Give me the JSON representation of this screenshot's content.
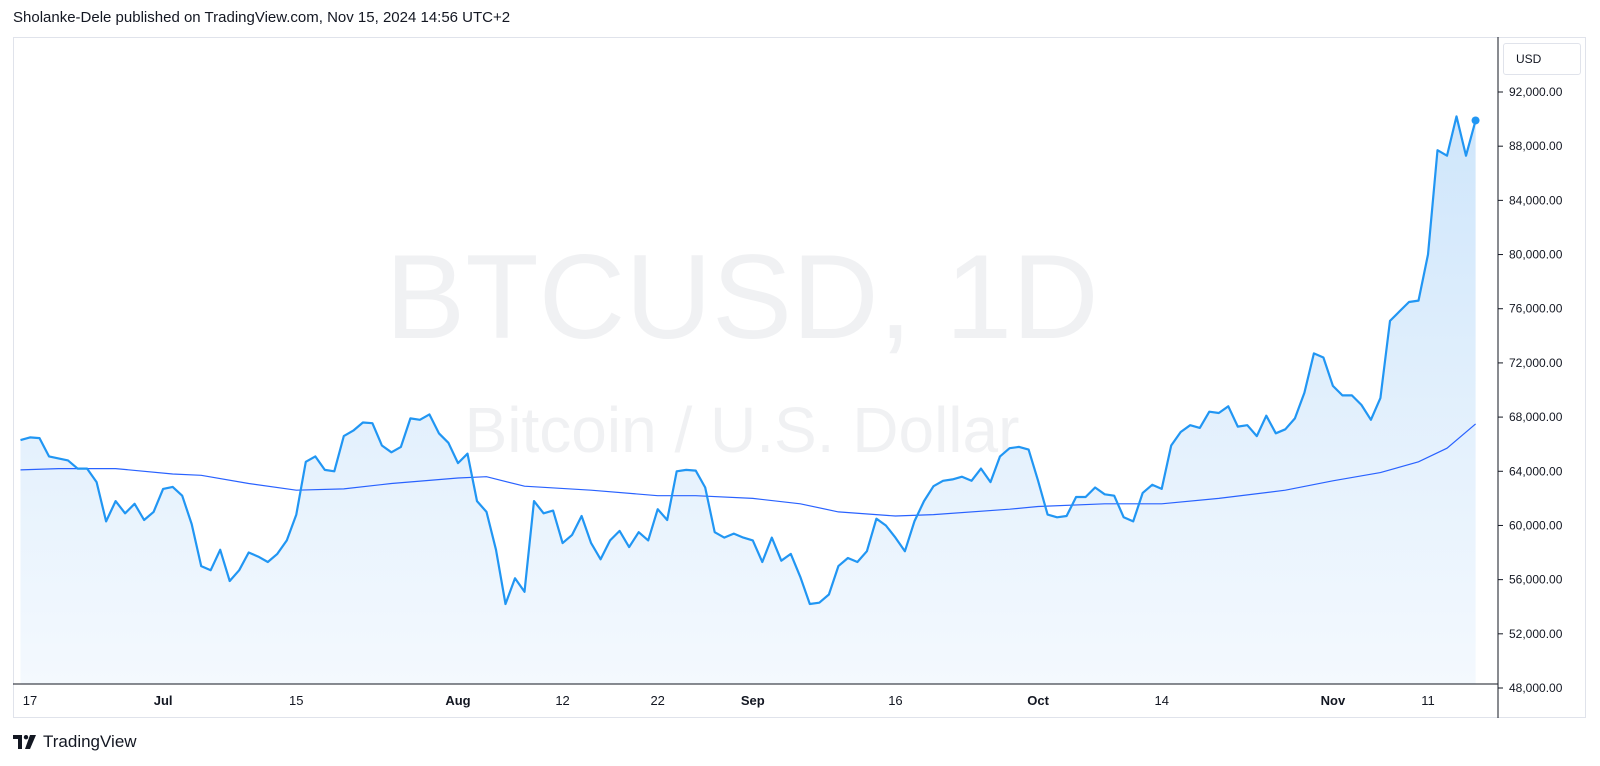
{
  "header": {
    "published_line": "Sholanke-Dele published on TradingView.com, Nov 15, 2024 14:56 UTC+2"
  },
  "currency_label": "USD",
  "watermark": {
    "symbol": "BTCUSD, 1D",
    "description": "Bitcoin / U.S. Dollar"
  },
  "footer": {
    "brand": "TradingView",
    "logo_icon": "tradingview-logo-icon"
  },
  "colors": {
    "price_line": "#2196f3",
    "ma_line": "#2962ff",
    "area_top": "#cfe6fb",
    "area_bottom": "#f4f9fe",
    "grid_border": "#e0e3eb",
    "watermark": "#f0f1f3"
  },
  "chart_data": {
    "type": "area",
    "title": "BTCUSD, 1D",
    "subtitle": "Bitcoin / U.S. Dollar",
    "ylim": [
      45000,
      95000
    ],
    "y_ticks": [
      48000,
      52000,
      56000,
      60000,
      64000,
      68000,
      72000,
      76000,
      80000,
      84000,
      88000,
      92000
    ],
    "y_tick_labels": [
      "48,000.00",
      "52,000.00",
      "56,000.00",
      "60,000.00",
      "64,000.00",
      "68,000.00",
      "72,000.00",
      "76,000.00",
      "80,000.00",
      "84,000.00",
      "88,000.00",
      "92,000.00"
    ],
    "x_range": [
      "2024-06-16",
      "2024-11-17"
    ],
    "x_ticks": [
      {
        "date": "2024-06-17",
        "label": "17",
        "bold": false
      },
      {
        "date": "2024-07-01",
        "label": "Jul",
        "bold": true
      },
      {
        "date": "2024-07-15",
        "label": "15",
        "bold": false
      },
      {
        "date": "2024-08-01",
        "label": "Aug",
        "bold": true
      },
      {
        "date": "2024-08-12",
        "label": "12",
        "bold": false
      },
      {
        "date": "2024-08-22",
        "label": "22",
        "bold": false
      },
      {
        "date": "2024-09-01",
        "label": "Sep",
        "bold": true
      },
      {
        "date": "2024-09-16",
        "label": "16",
        "bold": false
      },
      {
        "date": "2024-10-01",
        "label": "Oct",
        "bold": true
      },
      {
        "date": "2024-10-14",
        "label": "14",
        "bold": false
      },
      {
        "date": "2024-11-01",
        "label": "Nov",
        "bold": true
      },
      {
        "date": "2024-11-11",
        "label": "11",
        "bold": false
      }
    ],
    "series": [
      {
        "type": "area",
        "points": [
          [
            "2024-06-16",
            66300
          ],
          [
            "2024-06-17",
            66500
          ],
          [
            "2024-06-18",
            66450
          ],
          [
            "2024-06-19",
            65100
          ],
          [
            "2024-06-21",
            64800
          ],
          [
            "2024-06-22",
            64200
          ],
          [
            "2024-06-23",
            64200
          ],
          [
            "2024-06-24",
            63200
          ],
          [
            "2024-06-25",
            60300
          ],
          [
            "2024-06-26",
            61800
          ],
          [
            "2024-06-27",
            60900
          ],
          [
            "2024-06-28",
            61600
          ],
          [
            "2024-06-29",
            60400
          ],
          [
            "2024-06-30",
            61000
          ],
          [
            "2024-07-01",
            62700
          ],
          [
            "2024-07-02",
            62850
          ],
          [
            "2024-07-03",
            62200
          ],
          [
            "2024-07-04",
            60100
          ],
          [
            "2024-07-05",
            57000
          ],
          [
            "2024-07-06",
            56700
          ],
          [
            "2024-07-07",
            58200
          ],
          [
            "2024-07-08",
            55900
          ],
          [
            "2024-07-09",
            56700
          ],
          [
            "2024-07-10",
            58000
          ],
          [
            "2024-07-11",
            57700
          ],
          [
            "2024-07-12",
            57300
          ],
          [
            "2024-07-13",
            57900
          ],
          [
            "2024-07-14",
            58900
          ],
          [
            "2024-07-15",
            60800
          ],
          [
            "2024-07-16",
            64700
          ],
          [
            "2024-07-17",
            65100
          ],
          [
            "2024-07-18",
            64100
          ],
          [
            "2024-07-19",
            64000
          ],
          [
            "2024-07-20",
            66600
          ],
          [
            "2024-07-21",
            67000
          ],
          [
            "2024-07-22",
            67600
          ],
          [
            "2024-07-23",
            67550
          ],
          [
            "2024-07-24",
            65900
          ],
          [
            "2024-07-25",
            65400
          ],
          [
            "2024-07-26",
            65800
          ],
          [
            "2024-07-27",
            67900
          ],
          [
            "2024-07-28",
            67800
          ],
          [
            "2024-07-29",
            68200
          ],
          [
            "2024-07-30",
            66800
          ],
          [
            "2024-07-31",
            66100
          ],
          [
            "2024-08-01",
            64600
          ],
          [
            "2024-08-02",
            65300
          ],
          [
            "2024-08-03",
            61800
          ],
          [
            "2024-08-04",
            61000
          ],
          [
            "2024-08-05",
            58200
          ],
          [
            "2024-08-06",
            54200
          ],
          [
            "2024-08-07",
            56100
          ],
          [
            "2024-08-08",
            55100
          ],
          [
            "2024-08-09",
            61800
          ],
          [
            "2024-08-10",
            60900
          ],
          [
            "2024-08-11",
            61100
          ],
          [
            "2024-08-12",
            58700
          ],
          [
            "2024-08-13",
            59300
          ],
          [
            "2024-08-14",
            60700
          ],
          [
            "2024-08-15",
            58700
          ],
          [
            "2024-08-16",
            57500
          ],
          [
            "2024-08-17",
            58900
          ],
          [
            "2024-08-18",
            59600
          ],
          [
            "2024-08-19",
            58400
          ],
          [
            "2024-08-20",
            59500
          ],
          [
            "2024-08-21",
            58900
          ],
          [
            "2024-08-22",
            61200
          ],
          [
            "2024-08-23",
            60400
          ],
          [
            "2024-08-24",
            64000
          ],
          [
            "2024-08-25",
            64100
          ],
          [
            "2024-08-26",
            64050
          ],
          [
            "2024-08-27",
            62800
          ],
          [
            "2024-08-28",
            59500
          ],
          [
            "2024-08-29",
            59100
          ],
          [
            "2024-08-30",
            59400
          ],
          [
            "2024-08-31",
            59100
          ],
          [
            "2024-09-01",
            58900
          ],
          [
            "2024-09-02",
            57300
          ],
          [
            "2024-09-03",
            59100
          ],
          [
            "2024-09-04",
            57400
          ],
          [
            "2024-09-05",
            57900
          ],
          [
            "2024-09-06",
            56200
          ],
          [
            "2024-09-07",
            54200
          ],
          [
            "2024-09-08",
            54300
          ],
          [
            "2024-09-09",
            54900
          ],
          [
            "2024-09-10",
            57000
          ],
          [
            "2024-09-11",
            57600
          ],
          [
            "2024-09-12",
            57300
          ],
          [
            "2024-09-13",
            58100
          ],
          [
            "2024-09-14",
            60500
          ],
          [
            "2024-09-15",
            60000
          ],
          [
            "2024-09-16",
            59100
          ],
          [
            "2024-09-17",
            58100
          ],
          [
            "2024-09-18",
            60300
          ],
          [
            "2024-09-19",
            61800
          ],
          [
            "2024-09-20",
            62900
          ],
          [
            "2024-09-21",
            63300
          ],
          [
            "2024-09-22",
            63400
          ],
          [
            "2024-09-23",
            63600
          ],
          [
            "2024-09-24",
            63300
          ],
          [
            "2024-09-25",
            64200
          ],
          [
            "2024-09-26",
            63200
          ],
          [
            "2024-09-27",
            65100
          ],
          [
            "2024-09-28",
            65700
          ],
          [
            "2024-09-29",
            65800
          ],
          [
            "2024-09-30",
            65600
          ],
          [
            "2024-10-01",
            63300
          ],
          [
            "2024-10-02",
            60800
          ],
          [
            "2024-10-03",
            60600
          ],
          [
            "2024-10-04",
            60700
          ],
          [
            "2024-10-05",
            62100
          ],
          [
            "2024-10-06",
            62100
          ],
          [
            "2024-10-07",
            62800
          ],
          [
            "2024-10-08",
            62300
          ],
          [
            "2024-10-09",
            62200
          ],
          [
            "2024-10-10",
            60600
          ],
          [
            "2024-10-11",
            60300
          ],
          [
            "2024-10-12",
            62400
          ],
          [
            "2024-10-13",
            63000
          ],
          [
            "2024-10-14",
            62700
          ],
          [
            "2024-10-15",
            65900
          ],
          [
            "2024-10-16",
            66900
          ],
          [
            "2024-10-17",
            67400
          ],
          [
            "2024-10-18",
            67200
          ],
          [
            "2024-10-19",
            68400
          ],
          [
            "2024-10-20",
            68300
          ],
          [
            "2024-10-21",
            68800
          ],
          [
            "2024-10-22",
            67300
          ],
          [
            "2024-10-23",
            67400
          ],
          [
            "2024-10-24",
            66600
          ],
          [
            "2024-10-25",
            68100
          ],
          [
            "2024-10-26",
            66800
          ],
          [
            "2024-10-27",
            67100
          ],
          [
            "2024-10-28",
            67900
          ],
          [
            "2024-10-29",
            69800
          ],
          [
            "2024-10-30",
            72700
          ],
          [
            "2024-10-31",
            72400
          ],
          [
            "2024-11-01",
            70300
          ],
          [
            "2024-11-02",
            69600
          ],
          [
            "2024-11-03",
            69600
          ],
          [
            "2024-11-04",
            68900
          ],
          [
            "2024-11-05",
            67800
          ],
          [
            "2024-11-06",
            69400
          ],
          [
            "2024-11-07",
            75100
          ],
          [
            "2024-11-08",
            75800
          ],
          [
            "2024-11-09",
            76500
          ],
          [
            "2024-11-10",
            76600
          ],
          [
            "2024-11-11",
            80000
          ],
          [
            "2024-11-12",
            87700
          ],
          [
            "2024-11-13",
            87300
          ],
          [
            "2024-11-14",
            90200
          ],
          [
            "2024-11-15",
            87300
          ],
          [
            "2024-11-16",
            89900
          ]
        ]
      },
      {
        "type": "line",
        "points": [
          [
            "2024-06-16",
            64100
          ],
          [
            "2024-06-20",
            64200
          ],
          [
            "2024-06-26",
            64200
          ],
          [
            "2024-07-02",
            63800
          ],
          [
            "2024-07-05",
            63700
          ],
          [
            "2024-07-10",
            63100
          ],
          [
            "2024-07-15",
            62600
          ],
          [
            "2024-07-20",
            62700
          ],
          [
            "2024-07-25",
            63100
          ],
          [
            "2024-08-01",
            63500
          ],
          [
            "2024-08-04",
            63600
          ],
          [
            "2024-08-08",
            62900
          ],
          [
            "2024-08-15",
            62600
          ],
          [
            "2024-08-22",
            62200
          ],
          [
            "2024-08-26",
            62200
          ],
          [
            "2024-09-01",
            62000
          ],
          [
            "2024-09-06",
            61600
          ],
          [
            "2024-09-10",
            61000
          ],
          [
            "2024-09-16",
            60700
          ],
          [
            "2024-09-20",
            60800
          ],
          [
            "2024-09-28",
            61200
          ],
          [
            "2024-10-01",
            61400
          ],
          [
            "2024-10-08",
            61600
          ],
          [
            "2024-10-14",
            61600
          ],
          [
            "2024-10-20",
            62000
          ],
          [
            "2024-10-27",
            62600
          ],
          [
            "2024-11-01",
            63300
          ],
          [
            "2024-11-06",
            63900
          ],
          [
            "2024-11-10",
            64700
          ],
          [
            "2024-11-13",
            65700
          ],
          [
            "2024-11-16",
            67500
          ]
        ]
      }
    ]
  }
}
